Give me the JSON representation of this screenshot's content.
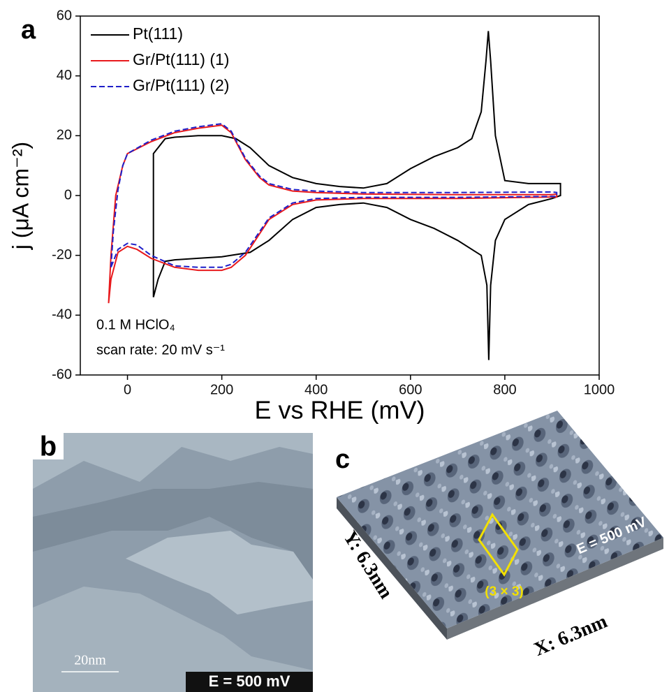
{
  "chart_data": {
    "type": "line",
    "panel_label": "a",
    "x_label": "E vs RHE (mV)",
    "y_label": "j (μA cm⁻²)",
    "annotations": [
      "0.1 M HClO₄",
      "scan rate: 20 mV s⁻¹"
    ],
    "xlim": [
      -100,
      1000
    ],
    "xticks": [
      0,
      200,
      400,
      600,
      800,
      1000
    ],
    "ylim": [
      -60,
      60
    ],
    "yticks": [
      -60,
      -40,
      -20,
      0,
      20,
      40,
      60
    ],
    "legend": "top-left",
    "series": [
      {
        "name": "Pt(111)",
        "color": "#000000",
        "line_style": "solid",
        "x": [
          55,
          55,
          80,
          100,
          150,
          200,
          230,
          260,
          300,
          350,
          400,
          450,
          500,
          550,
          600,
          650,
          700,
          730,
          750,
          760,
          765,
          770,
          780,
          800,
          850,
          900,
          918,
          918,
          900,
          850,
          800,
          780,
          770,
          766,
          762,
          750,
          700,
          650,
          600,
          550,
          500,
          450,
          400,
          350,
          300,
          260,
          200,
          150,
          100,
          80,
          65,
          55
        ],
        "values": [
          -34,
          14,
          19,
          19.5,
          20,
          20,
          19,
          16,
          10,
          6,
          4,
          3,
          2.5,
          4,
          9,
          13,
          16,
          19,
          28,
          45,
          55,
          45,
          20,
          5,
          4,
          4,
          4,
          0,
          -1,
          -3,
          -8,
          -15,
          -30,
          -55,
          -30,
          -20,
          -15,
          -11,
          -8,
          -4,
          -2.5,
          -3,
          -4,
          -8,
          -15,
          -19,
          -20.5,
          -21,
          -21.5,
          -22,
          -28,
          -34
        ]
      },
      {
        "name": "Gr/Pt(111) (1)",
        "color": "#e8191c",
        "line_style": "solid",
        "x": [
          -40,
          -35,
          -25,
          -10,
          0,
          50,
          100,
          150,
          200,
          220,
          250,
          280,
          300,
          350,
          400,
          500,
          700,
          900,
          910,
          910,
          900,
          700,
          500,
          400,
          350,
          300,
          250,
          220,
          200,
          150,
          100,
          50,
          20,
          0,
          -20,
          -35,
          -40
        ],
        "values": [
          -36,
          -20,
          0,
          10,
          14,
          18,
          21,
          22.5,
          23.5,
          21,
          12,
          6,
          3.5,
          1.5,
          1,
          0.5,
          0.3,
          0.3,
          0.5,
          -0.5,
          -0.5,
          -1,
          -1,
          -1.5,
          -3,
          -8,
          -20,
          -24,
          -25,
          -25,
          -24,
          -21,
          -18,
          -17,
          -19,
          -28,
          -36
        ]
      },
      {
        "name": "Gr/Pt(111) (2)",
        "color": "#1f1fc8",
        "line_style": "dashed",
        "x": [
          -35,
          -30,
          -20,
          -10,
          0,
          50,
          100,
          150,
          200,
          220,
          250,
          280,
          300,
          350,
          400,
          500,
          700,
          900,
          910,
          910,
          900,
          700,
          500,
          400,
          350,
          300,
          250,
          220,
          200,
          150,
          100,
          50,
          20,
          0,
          -20,
          -35
        ],
        "values": [
          -24,
          -12,
          2,
          10,
          14,
          18.5,
          21.5,
          23,
          24,
          21.5,
          12.5,
          6.5,
          4,
          2,
          1.5,
          1,
          1,
          1.2,
          1,
          -0.3,
          -0.3,
          -0.6,
          -0.6,
          -1,
          -2.5,
          -7.5,
          -19,
          -23,
          -24,
          -24,
          -23.5,
          -20,
          -16.5,
          -16,
          -18,
          -24
        ]
      }
    ]
  },
  "stm_images": {
    "b": {
      "label": "b",
      "scale_bar": "20nm",
      "potential": "E = 500 mV"
    },
    "c": {
      "label": "c",
      "cell": "(3 × 3)",
      "potential": "E = 500 mV",
      "y_size": "Y: 6.3nm",
      "x_size": "X: 6.3nm"
    }
  }
}
